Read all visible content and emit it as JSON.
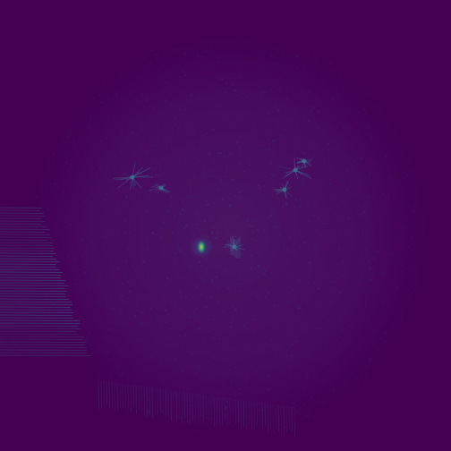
{
  "image": {
    "colormap": "viridis",
    "background_color": "#440154",
    "disc_color": "#46085c",
    "noise_color": "#3b4f8a",
    "hotspot_color": "#7fd34e",
    "hotspot_core_color": "#b8de29",
    "streak_color": "#3e6a8f"
  }
}
